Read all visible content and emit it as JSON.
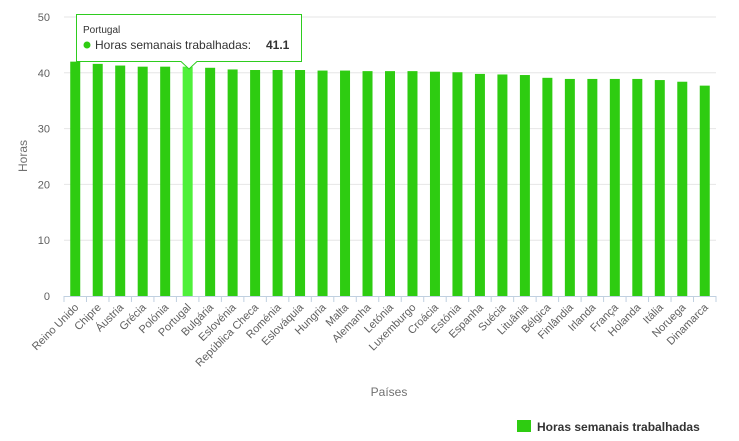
{
  "chart_data": {
    "type": "bar",
    "xlabel": "Países",
    "ylabel": "Horas",
    "ylim": [
      0,
      50
    ],
    "yticks": [
      0,
      10,
      20,
      30,
      40,
      50
    ],
    "grid": true,
    "legend_placement": "bottom-right",
    "categories": [
      "Reino Unido",
      "Chipre",
      "Áustria",
      "Grécia",
      "Polónia",
      "Portugal",
      "Bulgária",
      "Eslovénia",
      "República Checa",
      "Roménia",
      "Eslováquia",
      "Hungria",
      "Malta",
      "Alemanha",
      "Letónia",
      "Luxemburgo",
      "Croácia",
      "Estónia",
      "Espanha",
      "Suécia",
      "Lituânia",
      "Bélgica",
      "Finlândia",
      "Irlanda",
      "França",
      "Holanda",
      "Itália",
      "Noruega",
      "Dinamarca"
    ],
    "series": [
      {
        "name": "Horas semanais trabalhadas",
        "color": "#2ecc11",
        "highlight_color": "#4ff03a",
        "values": [
          42.0,
          41.6,
          41.3,
          41.1,
          41.1,
          41.1,
          40.9,
          40.6,
          40.5,
          40.5,
          40.5,
          40.4,
          40.4,
          40.3,
          40.3,
          40.3,
          40.2,
          40.1,
          39.8,
          39.7,
          39.6,
          39.1,
          38.9,
          38.9,
          38.9,
          38.9,
          38.7,
          38.4,
          37.7
        ]
      }
    ],
    "tooltip": {
      "category": "Portugal",
      "series_label": "Horas semanais trabalhadas:",
      "value": "41.1"
    }
  }
}
